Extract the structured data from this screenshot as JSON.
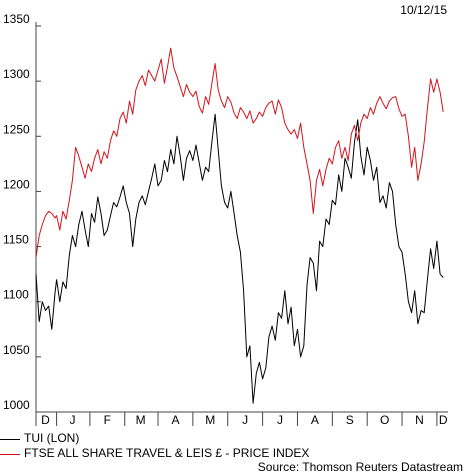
{
  "date_label": "10/12/15",
  "source": "Source: Thomson Reuters Datastream",
  "colors": {
    "tui": "#000000",
    "ftse": "#d4141c",
    "axis": "#444444"
  },
  "legend": [
    {
      "label": "TUI (LON)",
      "color": "#000000"
    },
    {
      "label": "FTSE ALL SHARE TRAVEL & LEIS £ - PRICE INDEX",
      "color": "#d4141c"
    }
  ],
  "chart_data": {
    "type": "line",
    "ylim": [
      1000,
      1350
    ],
    "yticks": [
      1000,
      1050,
      1100,
      1150,
      1200,
      1250,
      1300,
      1350
    ],
    "xlim": [
      0,
      260
    ],
    "xtick_labels": [
      {
        "label": "D",
        "pos": 6
      },
      {
        "label": "J",
        "pos": 23
      },
      {
        "label": "F",
        "pos": 45
      },
      {
        "label": "M",
        "pos": 66
      },
      {
        "label": "A",
        "pos": 88
      },
      {
        "label": "M",
        "pos": 110
      },
      {
        "label": "J",
        "pos": 132
      },
      {
        "label": "J",
        "pos": 154
      },
      {
        "label": "A",
        "pos": 176
      },
      {
        "label": "S",
        "pos": 198
      },
      {
        "label": "O",
        "pos": 220
      },
      {
        "label": "N",
        "pos": 242
      },
      {
        "label": "D",
        "pos": 257
      }
    ],
    "xtick_marks": [
      0,
      13,
      34,
      56,
      77,
      99,
      121,
      143,
      165,
      187,
      209,
      231,
      253
    ],
    "series": [
      {
        "name": "TUI (LON)",
        "color": "#000000",
        "points": [
          [
            0,
            1125
          ],
          [
            2,
            1082
          ],
          [
            4,
            1100
          ],
          [
            6,
            1092
          ],
          [
            8,
            1096
          ],
          [
            10,
            1075
          ],
          [
            12,
            1108
          ],
          [
            13,
            1120
          ],
          [
            15,
            1100
          ],
          [
            17,
            1118
          ],
          [
            19,
            1112
          ],
          [
            21,
            1142
          ],
          [
            23,
            1160
          ],
          [
            25,
            1150
          ],
          [
            27,
            1170
          ],
          [
            29,
            1182
          ],
          [
            31,
            1165
          ],
          [
            33,
            1150
          ],
          [
            35,
            1180
          ],
          [
            37,
            1172
          ],
          [
            39,
            1195
          ],
          [
            41,
            1180
          ],
          [
            43,
            1160
          ],
          [
            45,
            1165
          ],
          [
            47,
            1178
          ],
          [
            49,
            1190
          ],
          [
            51,
            1186
          ],
          [
            53,
            1195
          ],
          [
            55,
            1205
          ],
          [
            57,
            1190
          ],
          [
            59,
            1180
          ],
          [
            61,
            1150
          ],
          [
            63,
            1175
          ],
          [
            65,
            1190
          ],
          [
            67,
            1196
          ],
          [
            69,
            1188
          ],
          [
            71,
            1200
          ],
          [
            73,
            1212
          ],
          [
            75,
            1225
          ],
          [
            77,
            1205
          ],
          [
            79,
            1210
          ],
          [
            81,
            1228
          ],
          [
            83,
            1218
          ],
          [
            85,
            1238
          ],
          [
            87,
            1225
          ],
          [
            89,
            1250
          ],
          [
            91,
            1232
          ],
          [
            93,
            1210
          ],
          [
            95,
            1230
          ],
          [
            97,
            1237
          ],
          [
            99,
            1228
          ],
          [
            101,
            1242
          ],
          [
            103,
            1226
          ],
          [
            105,
            1210
          ],
          [
            107,
            1222
          ],
          [
            109,
            1218
          ],
          [
            111,
            1245
          ],
          [
            113,
            1270
          ],
          [
            115,
            1238
          ],
          [
            117,
            1205
          ],
          [
            119,
            1190
          ],
          [
            121,
            1185
          ],
          [
            123,
            1200
          ],
          [
            125,
            1180
          ],
          [
            127,
            1160
          ],
          [
            129,
            1145
          ],
          [
            131,
            1110
          ],
          [
            133,
            1050
          ],
          [
            135,
            1060
          ],
          [
            137,
            1008
          ],
          [
            139,
            1035
          ],
          [
            141,
            1045
          ],
          [
            143,
            1030
          ],
          [
            145,
            1040
          ],
          [
            147,
            1068
          ],
          [
            149,
            1078
          ],
          [
            151,
            1065
          ],
          [
            153,
            1090
          ],
          [
            155,
            1085
          ],
          [
            157,
            1110
          ],
          [
            159,
            1080
          ],
          [
            161,
            1095
          ],
          [
            163,
            1060
          ],
          [
            165,
            1075
          ],
          [
            167,
            1050
          ],
          [
            169,
            1060
          ],
          [
            171,
            1115
          ],
          [
            173,
            1140
          ],
          [
            175,
            1135
          ],
          [
            177,
            1110
          ],
          [
            179,
            1155
          ],
          [
            181,
            1150
          ],
          [
            183,
            1175
          ],
          [
            185,
            1170
          ],
          [
            187,
            1192
          ],
          [
            189,
            1188
          ],
          [
            191,
            1215
          ],
          [
            193,
            1200
          ],
          [
            195,
            1230
          ],
          [
            197,
            1222
          ],
          [
            199,
            1212
          ],
          [
            201,
            1245
          ],
          [
            203,
            1265
          ],
          [
            205,
            1232
          ],
          [
            207,
            1215
          ],
          [
            209,
            1240
          ],
          [
            211,
            1228
          ],
          [
            213,
            1210
          ],
          [
            215,
            1222
          ],
          [
            217,
            1190
          ],
          [
            219,
            1196
          ],
          [
            221,
            1185
          ],
          [
            223,
            1208
          ],
          [
            225,
            1200
          ],
          [
            227,
            1170
          ],
          [
            229,
            1150
          ],
          [
            231,
            1145
          ],
          [
            233,
            1125
          ],
          [
            235,
            1100
          ],
          [
            237,
            1090
          ],
          [
            239,
            1110
          ],
          [
            241,
            1080
          ],
          [
            243,
            1092
          ],
          [
            245,
            1090
          ],
          [
            247,
            1120
          ],
          [
            249,
            1148
          ],
          [
            251,
            1130
          ],
          [
            253,
            1155
          ],
          [
            255,
            1125
          ],
          [
            257,
            1122
          ]
        ]
      },
      {
        "name": "FTSE ALL SHARE TRAVEL & LEIS £ - PRICE INDEX",
        "color": "#d4141c",
        "points": [
          [
            0,
            1140
          ],
          [
            2,
            1160
          ],
          [
            4,
            1170
          ],
          [
            6,
            1178
          ],
          [
            8,
            1182
          ],
          [
            10,
            1180
          ],
          [
            12,
            1176
          ],
          [
            13,
            1178
          ],
          [
            15,
            1165
          ],
          [
            17,
            1182
          ],
          [
            19,
            1175
          ],
          [
            21,
            1192
          ],
          [
            23,
            1210
          ],
          [
            25,
            1240
          ],
          [
            27,
            1232
          ],
          [
            29,
            1222
          ],
          [
            31,
            1212
          ],
          [
            33,
            1225
          ],
          [
            35,
            1218
          ],
          [
            37,
            1230
          ],
          [
            39,
            1238
          ],
          [
            41,
            1225
          ],
          [
            43,
            1236
          ],
          [
            45,
            1230
          ],
          [
            47,
            1246
          ],
          [
            49,
            1255
          ],
          [
            51,
            1250
          ],
          [
            53,
            1266
          ],
          [
            55,
            1272
          ],
          [
            57,
            1262
          ],
          [
            59,
            1282
          ],
          [
            61,
            1270
          ],
          [
            63,
            1292
          ],
          [
            65,
            1300
          ],
          [
            67,
            1305
          ],
          [
            69,
            1296
          ],
          [
            71,
            1310
          ],
          [
            73,
            1305
          ],
          [
            75,
            1300
          ],
          [
            77,
            1310
          ],
          [
            79,
            1320
          ],
          [
            81,
            1298
          ],
          [
            83,
            1313
          ],
          [
            85,
            1330
          ],
          [
            87,
            1312
          ],
          [
            89,
            1304
          ],
          [
            91,
            1295
          ],
          [
            93,
            1286
          ],
          [
            95,
            1297
          ],
          [
            97,
            1290
          ],
          [
            99,
            1286
          ],
          [
            101,
            1291
          ],
          [
            103,
            1277
          ],
          [
            105,
            1271
          ],
          [
            107,
            1286
          ],
          [
            109,
            1279
          ],
          [
            111,
            1298
          ],
          [
            113,
            1316
          ],
          [
            115,
            1292
          ],
          [
            117,
            1282
          ],
          [
            119,
            1276
          ],
          [
            121,
            1286
          ],
          [
            123,
            1281
          ],
          [
            125,
            1271
          ],
          [
            127,
            1266
          ],
          [
            129,
            1276
          ],
          [
            131,
            1272
          ],
          [
            133,
            1266
          ],
          [
            135,
            1273
          ],
          [
            137,
            1262
          ],
          [
            139,
            1266
          ],
          [
            141,
            1272
          ],
          [
            143,
            1268
          ],
          [
            145,
            1276
          ],
          [
            147,
            1280
          ],
          [
            149,
            1282
          ],
          [
            151,
            1270
          ],
          [
            153,
            1283
          ],
          [
            155,
            1276
          ],
          [
            157,
            1262
          ],
          [
            159,
            1256
          ],
          [
            161,
            1252
          ],
          [
            163,
            1256
          ],
          [
            165,
            1248
          ],
          [
            167,
            1262
          ],
          [
            169,
            1240
          ],
          [
            171,
            1225
          ],
          [
            173,
            1210
          ],
          [
            175,
            1180
          ],
          [
            177,
            1210
          ],
          [
            179,
            1220
          ],
          [
            181,
            1205
          ],
          [
            183,
            1220
          ],
          [
            185,
            1230
          ],
          [
            187,
            1225
          ],
          [
            189,
            1240
          ],
          [
            191,
            1246
          ],
          [
            193,
            1230
          ],
          [
            195,
            1240
          ],
          [
            197,
            1228
          ],
          [
            199,
            1252
          ],
          [
            201,
            1260
          ],
          [
            203,
            1246
          ],
          [
            205,
            1262
          ],
          [
            207,
            1270
          ],
          [
            209,
            1266
          ],
          [
            211,
            1276
          ],
          [
            213,
            1270
          ],
          [
            215,
            1280
          ],
          [
            217,
            1286
          ],
          [
            219,
            1280
          ],
          [
            221,
            1275
          ],
          [
            223,
            1282
          ],
          [
            225,
            1285
          ],
          [
            227,
            1286
          ],
          [
            229,
            1275
          ],
          [
            231,
            1268
          ],
          [
            233,
            1270
          ],
          [
            235,
            1250
          ],
          [
            237,
            1222
          ],
          [
            239,
            1240
          ],
          [
            241,
            1210
          ],
          [
            243,
            1225
          ],
          [
            245,
            1245
          ],
          [
            247,
            1275
          ],
          [
            249,
            1302
          ],
          [
            251,
            1290
          ],
          [
            253,
            1302
          ],
          [
            255,
            1290
          ],
          [
            257,
            1272
          ]
        ]
      }
    ]
  }
}
